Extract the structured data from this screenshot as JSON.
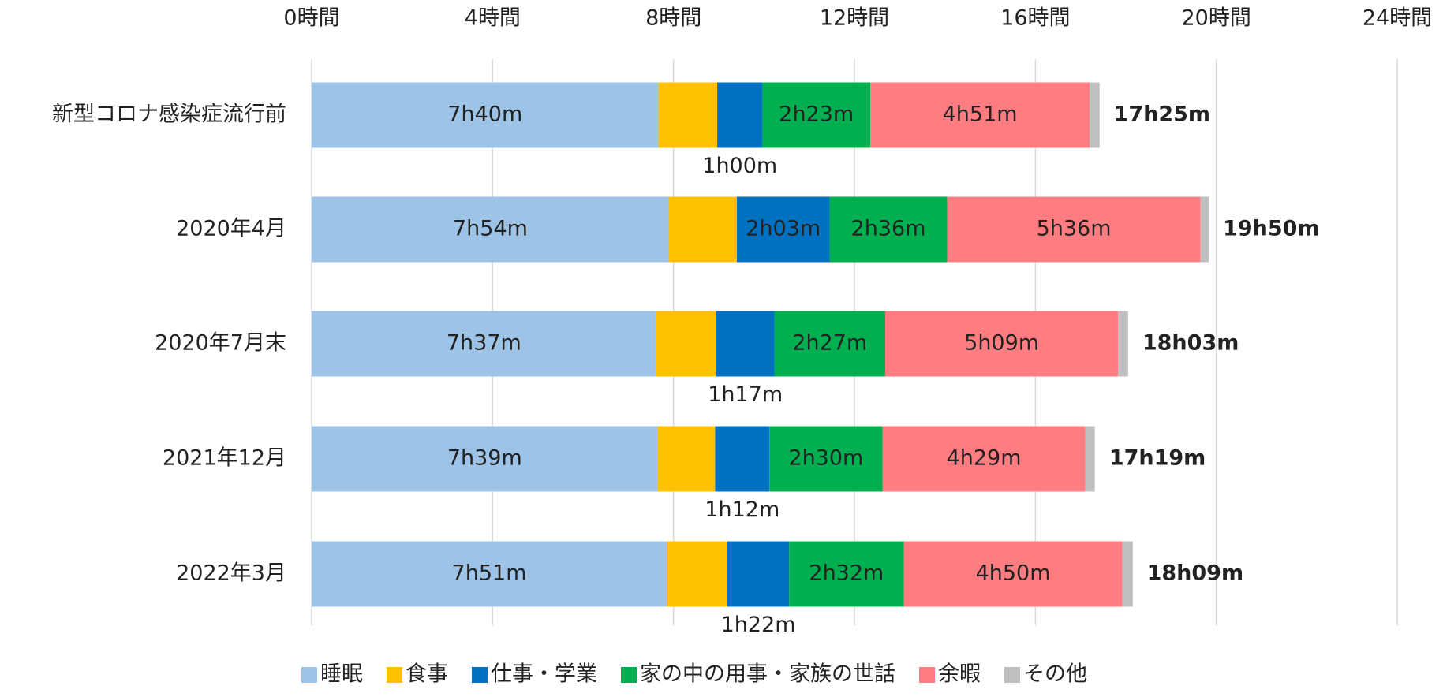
{
  "chart_data": {
    "type": "stacked_barh",
    "categories": [
      "新型コロナ感染症流行前",
      "2020年4月",
      "2020年7月末",
      "2021年12月",
      "2022年3月"
    ],
    "xlim": [
      0,
      24
    ],
    "xticks": [
      {
        "value": 0,
        "label": "0時間"
      },
      {
        "value": 4,
        "label": "4時間"
      },
      {
        "value": 8,
        "label": "8時間"
      },
      {
        "value": 12,
        "label": "12時間"
      },
      {
        "value": 16,
        "label": "16時間"
      },
      {
        "value": 20,
        "label": "20時間"
      },
      {
        "value": 24,
        "label": "24時間"
      }
    ],
    "grid": true,
    "legend": "bottom",
    "series": [
      {
        "name": "睡眠",
        "color": "#9dc3e6",
        "values": [
          7.6667,
          7.9,
          7.6167,
          7.65,
          7.85
        ],
        "value_labels": [
          "7h40m",
          "7h54m",
          "7h37m",
          "7h39m",
          "7h51m"
        ]
      },
      {
        "name": "食事",
        "color": "#ffc000",
        "values": [
          1.3,
          1.5,
          1.33,
          1.27,
          1.34
        ]
      },
      {
        "name": "仕事・学業",
        "color": "#0070c0",
        "values": [
          1.0,
          2.05,
          1.2833,
          1.2,
          1.3667
        ],
        "value_labels": [
          "1h00m",
          "2h03m",
          "1h17m",
          "1h12m",
          "1h22m"
        ]
      },
      {
        "name": "家の中の用事・家族の世話",
        "color": "#00b050",
        "values": [
          2.3833,
          2.6,
          2.45,
          2.5,
          2.5333
        ],
        "value_labels": [
          "2h23m",
          "2h36m",
          "2h27m",
          "2h30m",
          "2h32m"
        ]
      },
      {
        "name": "余暇",
        "color": "#ff7c80",
        "values": [
          4.85,
          5.6,
          5.15,
          4.4833,
          4.8333
        ],
        "value_labels": [
          "4h51m",
          "5h36m",
          "5h09m",
          "4h29m",
          "4h50m"
        ]
      },
      {
        "name": "その他",
        "color": "#bfbfbf",
        "values": [
          0.22,
          0.18,
          0.22,
          0.21,
          0.23
        ]
      }
    ],
    "totals": {
      "values": [
        17.4167,
        19.8333,
        18.05,
        17.3167,
        18.15
      ],
      "value_labels": [
        "17h25m",
        "19h50m",
        "18h03m",
        "17h19m",
        "18h09m"
      ]
    }
  }
}
